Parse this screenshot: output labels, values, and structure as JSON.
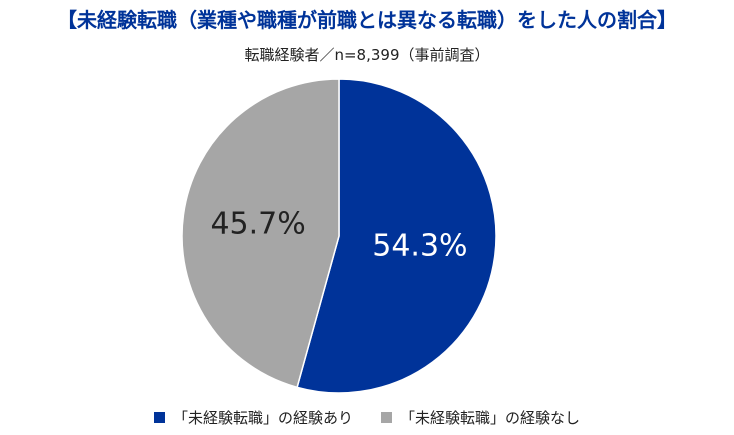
{
  "chart_data": {
    "type": "pie",
    "title": "【未経験転職（業種や職種が前職とは異なる転職）をした人の割合】",
    "subtitle": "転職経験者／n=8,399（事前調査）",
    "categories": [
      "「未経験転職」の経験あり",
      "「未経験転職」の経験なし"
    ],
    "values": [
      54.3,
      45.7
    ],
    "labels": [
      "54.3%",
      "45.7%"
    ],
    "colors": [
      "#003399",
      "#a6a6a6"
    ],
    "label_colors": [
      "#ffffff",
      "#222222"
    ],
    "legend_position": "bottom"
  },
  "colors": {
    "title": "#003399",
    "background": "#ffffff"
  }
}
